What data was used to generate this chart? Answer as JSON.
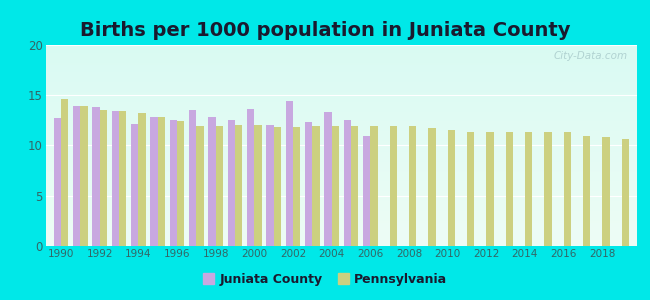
{
  "title": "Births per 1000 population in Juniata County",
  "years": [
    1990,
    1991,
    1992,
    1993,
    1994,
    1995,
    1996,
    1997,
    1998,
    1999,
    2000,
    2001,
    2002,
    2003,
    2004,
    2005,
    2006,
    2007,
    2008,
    2009,
    2010,
    2011,
    2012,
    2013,
    2014,
    2015,
    2016,
    2017,
    2018,
    2019
  ],
  "juniata": [
    12.7,
    13.9,
    13.8,
    13.4,
    12.1,
    12.8,
    12.5,
    13.5,
    12.8,
    12.5,
    13.6,
    12.0,
    14.4,
    12.3,
    13.3,
    12.5,
    10.9,
    null,
    null,
    null,
    null,
    null,
    null,
    null,
    null,
    null,
    null,
    null,
    null,
    null
  ],
  "pennsylvania": [
    14.6,
    13.9,
    13.5,
    13.4,
    13.2,
    12.8,
    12.4,
    11.9,
    11.9,
    12.0,
    12.0,
    11.8,
    11.8,
    11.9,
    11.9,
    11.9,
    11.9,
    11.9,
    11.9,
    11.7,
    11.5,
    11.3,
    11.3,
    11.3,
    11.3,
    11.3,
    11.3,
    10.9,
    10.8,
    10.6
  ],
  "juniata_color": "#c8a8e0",
  "pennsylvania_color": "#ccd080",
  "background_color": "#00e8e8",
  "ylim": [
    0,
    20
  ],
  "yticks": [
    0,
    5,
    10,
    15,
    20
  ],
  "title_fontsize": 14,
  "bar_width": 0.38,
  "watermark": "City-Data.com"
}
